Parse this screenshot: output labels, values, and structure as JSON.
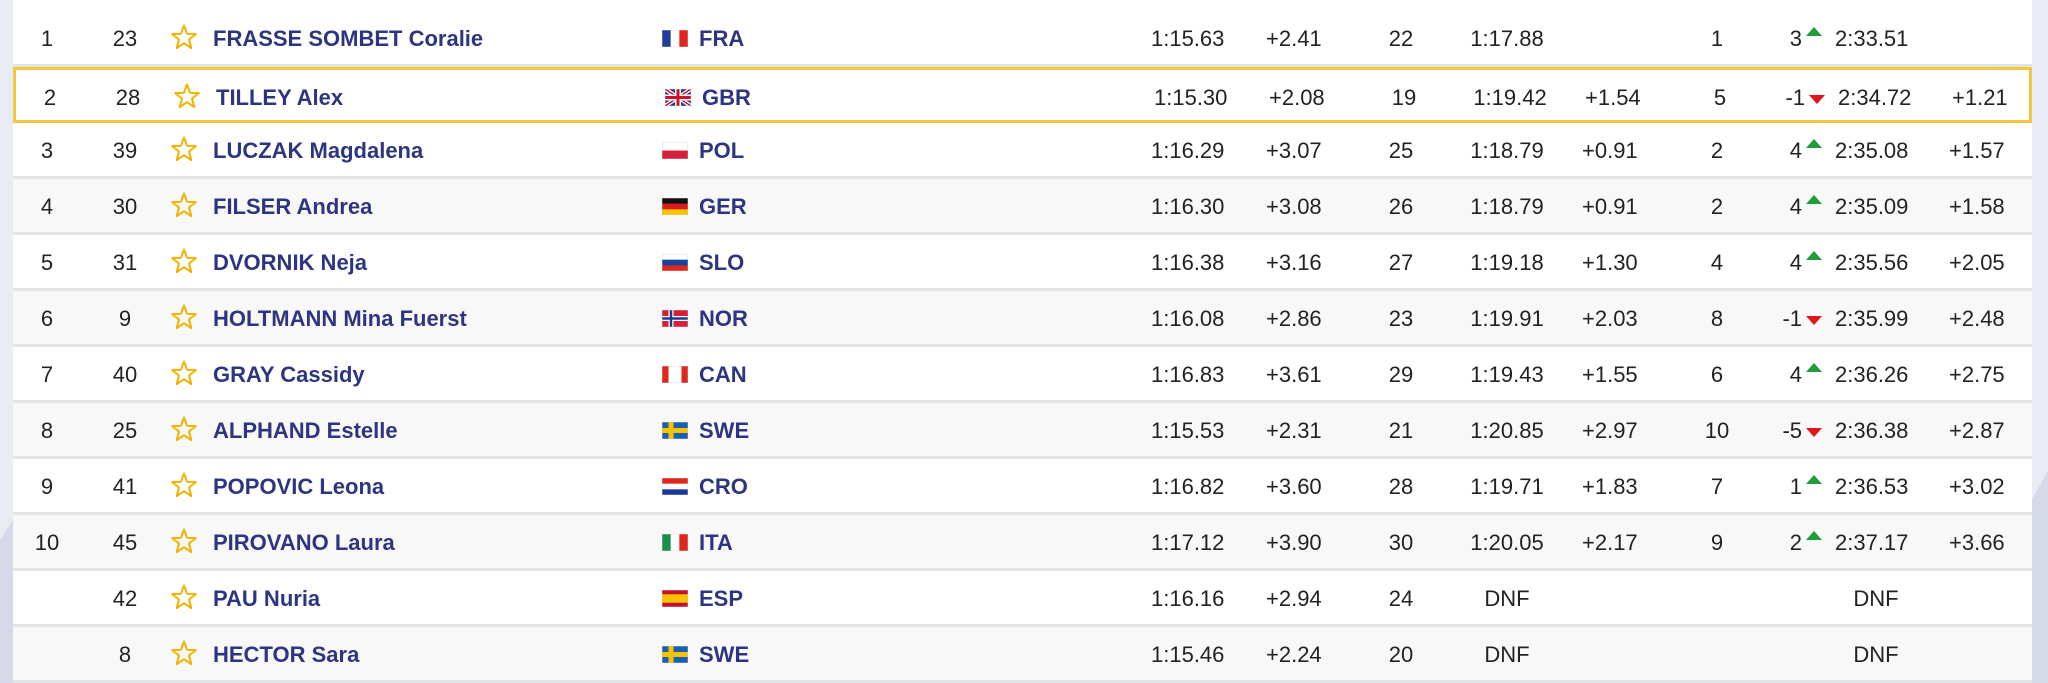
{
  "table": {
    "rows": [
      {
        "rank": 1,
        "bib": 23,
        "name": "FRASSE SOMBET Coralie",
        "nation": "FRA",
        "run1_time": "1:15.63",
        "run1_diff": "+2.41",
        "run1_rank": 22,
        "run2_time": "1:17.88",
        "run2_rank": 1,
        "change": 3,
        "total": "2:33.51"
      },
      {
        "rank": 2,
        "bib": 28,
        "name": "TILLEY Alex",
        "nation": "GBR",
        "run1_time": "1:15.30",
        "run1_diff": "+2.08",
        "run1_rank": 19,
        "run2_time": "1:19.42",
        "run2_diff": "+1.54",
        "run2_rank": 5,
        "change": -1,
        "total": "2:34.72",
        "total_diff": "+1.21"
      },
      {
        "rank": 3,
        "bib": 39,
        "name": "LUCZAK Magdalena",
        "nation": "POL",
        "run1_time": "1:16.29",
        "run1_diff": "+3.07",
        "run1_rank": 25,
        "run2_time": "1:18.79",
        "run2_diff": "+0.91",
        "run2_rank": 2,
        "change": 4,
        "total": "2:35.08",
        "total_diff": "+1.57"
      },
      {
        "rank": 4,
        "bib": 30,
        "name": "FILSER Andrea",
        "nation": "GER",
        "run1_time": "1:16.30",
        "run1_diff": "+3.08",
        "run1_rank": 26,
        "run2_time": "1:18.79",
        "run2_diff": "+0.91",
        "run2_rank": 2,
        "change": 4,
        "total": "2:35.09",
        "total_diff": "+1.58"
      },
      {
        "rank": 5,
        "bib": 31,
        "name": "DVORNIK Neja",
        "nation": "SLO",
        "run1_time": "1:16.38",
        "run1_diff": "+3.16",
        "run1_rank": 27,
        "run2_time": "1:19.18",
        "run2_diff": "+1.30",
        "run2_rank": 4,
        "change": 4,
        "total": "2:35.56",
        "total_diff": "+2.05"
      },
      {
        "rank": 6,
        "bib": 9,
        "name": "HOLTMANN Mina Fuerst",
        "nation": "NOR",
        "run1_time": "1:16.08",
        "run1_diff": "+2.86",
        "run1_rank": 23,
        "run2_time": "1:19.91",
        "run2_diff": "+2.03",
        "run2_rank": 8,
        "change": -1,
        "total": "2:35.99",
        "total_diff": "+2.48"
      },
      {
        "rank": 7,
        "bib": 40,
        "name": "GRAY Cassidy",
        "nation": "CAN",
        "run1_time": "1:16.83",
        "run1_diff": "+3.61",
        "run1_rank": 29,
        "run2_time": "1:19.43",
        "run2_diff": "+1.55",
        "run2_rank": 6,
        "change": 4,
        "total": "2:36.26",
        "total_diff": "+2.75"
      },
      {
        "rank": 8,
        "bib": 25,
        "name": "ALPHAND Estelle",
        "nation": "SWE",
        "run1_time": "1:15.53",
        "run1_diff": "+2.31",
        "run1_rank": 21,
        "run2_time": "1:20.85",
        "run2_diff": "+2.97",
        "run2_rank": 10,
        "change": -5,
        "total": "2:36.38",
        "total_diff": "+2.87"
      },
      {
        "rank": 9,
        "bib": 41,
        "name": "POPOVIC Leona",
        "nation": "CRO",
        "run1_time": "1:16.82",
        "run1_diff": "+3.60",
        "run1_rank": 28,
        "run2_time": "1:19.71",
        "run2_diff": "+1.83",
        "run2_rank": 7,
        "change": 1,
        "total": "2:36.53",
        "total_diff": "+3.02"
      },
      {
        "rank": 10,
        "bib": 45,
        "name": "PIROVANO Laura",
        "nation": "ITA",
        "run1_time": "1:17.12",
        "run1_diff": "+3.90",
        "run1_rank": 30,
        "run2_time": "1:20.05",
        "run2_diff": "+2.17",
        "run2_rank": 9,
        "change": 2,
        "total": "2:37.17",
        "total_diff": "+3.66"
      },
      {
        "bib": 42,
        "name": "PAU Nuria",
        "nation": "ESP",
        "run1_time": "1:16.16",
        "run1_diff": "+2.94",
        "run1_rank": 24,
        "run2_time": "DNF",
        "total": "DNF"
      },
      {
        "bib": 8,
        "name": "HECTOR Sara",
        "nation": "SWE",
        "run1_time": "1:15.46",
        "run1_diff": "+2.24",
        "run1_rank": 20,
        "run2_time": "DNF",
        "total": "DNF"
      }
    ]
  }
}
